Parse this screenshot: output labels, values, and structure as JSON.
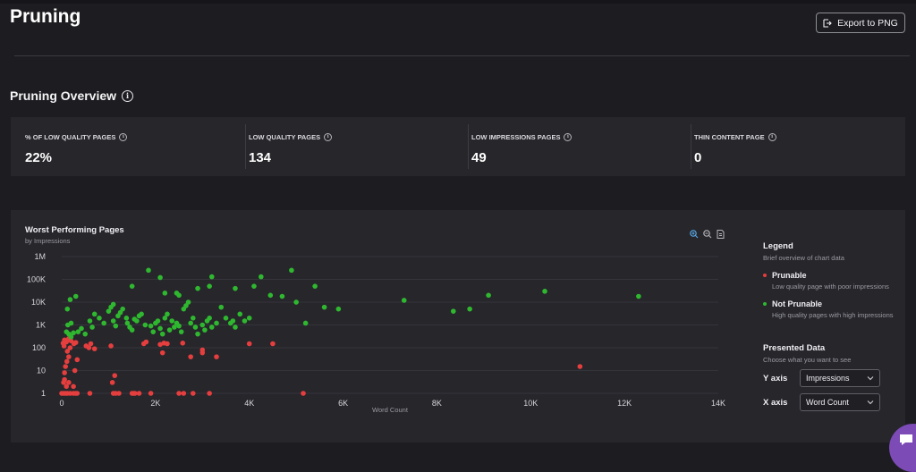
{
  "page": {
    "title": "Pruning",
    "export_label": "Export to PNG"
  },
  "overview": {
    "title": "Pruning Overview",
    "stats": [
      {
        "label": "% OF LOW QUALITY PAGES",
        "value": "22%"
      },
      {
        "label": "LOW QUALITY PAGES",
        "value": "134"
      },
      {
        "label": "LOW IMPRESSIONS PAGES",
        "value": "49"
      },
      {
        "label": "THIN CONTENT PAGE",
        "value": "0"
      }
    ]
  },
  "chart_panel": {
    "title": "Worst Performing Pages",
    "subtitle": "by Impressions",
    "toolbar_icons": [
      "zoom-in-icon",
      "zoom-out-icon",
      "download-icon"
    ]
  },
  "legend": {
    "title": "Legend",
    "subtitle": "Brief overview of chart data",
    "items": [
      {
        "name": "Prunable",
        "desc": "Low quality page with poor impressions",
        "color": "#e53e3e"
      },
      {
        "name": "Not Prunable",
        "desc": "High quality pages with high impressions",
        "color": "#2fb82f"
      }
    ]
  },
  "presented": {
    "title": "Presented Data",
    "subtitle": "Choose what you want to see",
    "y_label": "Y axis",
    "y_value": "Impressions",
    "x_label": "X axis",
    "x_value": "Word Count"
  },
  "colors": {
    "prunable": "#e53e3e",
    "not_prunable": "#2fb82f",
    "chat": "#7c4bb6"
  },
  "chart_data": {
    "type": "scatter",
    "xlabel": "Word Count",
    "ylabel": "",
    "xlim": [
      0,
      14000
    ],
    "ylim": [
      1,
      1000000
    ],
    "y_scale": "log",
    "x_ticks": [
      0,
      2000,
      4000,
      6000,
      8000,
      10000,
      12000,
      14000
    ],
    "x_tick_labels": [
      "0",
      "2K",
      "4K",
      "6K",
      "8K",
      "10K",
      "12K",
      "14K"
    ],
    "y_ticks": [
      1,
      10,
      100,
      1000,
      10000,
      100000,
      1000000
    ],
    "y_tick_labels": [
      "1",
      "10",
      "100",
      "1K",
      "10K",
      "100K",
      "1M"
    ],
    "grid": true,
    "series": [
      {
        "name": "Prunable",
        "points": [
          [
            0,
            1
          ],
          [
            40,
            1
          ],
          [
            80,
            1
          ],
          [
            120,
            1
          ],
          [
            180,
            1
          ],
          [
            250,
            1
          ],
          [
            300,
            1
          ],
          [
            330,
            1
          ],
          [
            600,
            1
          ],
          [
            1100,
            1
          ],
          [
            1150,
            1
          ],
          [
            1220,
            1
          ],
          [
            1500,
            1
          ],
          [
            1530,
            1
          ],
          [
            1560,
            1
          ],
          [
            1650,
            1
          ],
          [
            1900,
            1
          ],
          [
            2500,
            1
          ],
          [
            2600,
            1
          ],
          [
            2800,
            1
          ],
          [
            3150,
            1
          ],
          [
            5150,
            1
          ],
          [
            40,
            3
          ],
          [
            60,
            4
          ],
          [
            100,
            2
          ],
          [
            150,
            3
          ],
          [
            250,
            2
          ],
          [
            1080,
            3
          ],
          [
            1130,
            6
          ],
          [
            60,
            8
          ],
          [
            80,
            15
          ],
          [
            110,
            25
          ],
          [
            150,
            40
          ],
          [
            120,
            70
          ],
          [
            180,
            100
          ],
          [
            50,
            120
          ],
          [
            30,
            160
          ],
          [
            100,
            180
          ],
          [
            60,
            220
          ],
          [
            150,
            250
          ],
          [
            200,
            200
          ],
          [
            260,
            150
          ],
          [
            300,
            170
          ],
          [
            280,
            10
          ],
          [
            330,
            30
          ],
          [
            520,
            120
          ],
          [
            580,
            100
          ],
          [
            620,
            150
          ],
          [
            700,
            90
          ],
          [
            1050,
            120
          ],
          [
            1750,
            150
          ],
          [
            1800,
            180
          ],
          [
            2100,
            140
          ],
          [
            2180,
            160
          ],
          [
            2250,
            150
          ],
          [
            2580,
            160
          ],
          [
            2750,
            40
          ],
          [
            3000,
            80
          ],
          [
            3300,
            40
          ],
          [
            3000,
            60
          ],
          [
            2150,
            60
          ],
          [
            4000,
            150
          ],
          [
            4500,
            150
          ],
          [
            11050,
            15
          ]
        ]
      },
      {
        "name": "Not Prunable",
        "points": [
          [
            100,
            500
          ],
          [
            150,
            400
          ],
          [
            200,
            300
          ],
          [
            250,
            450
          ],
          [
            120,
            5000
          ],
          [
            180,
            13000
          ],
          [
            300,
            18000
          ],
          [
            200,
            1200
          ],
          [
            130,
            1000
          ],
          [
            350,
            500
          ],
          [
            420,
            700
          ],
          [
            500,
            400
          ],
          [
            600,
            1500
          ],
          [
            650,
            800
          ],
          [
            700,
            3000
          ],
          [
            800,
            2000
          ],
          [
            900,
            1200
          ],
          [
            1000,
            4000
          ],
          [
            1050,
            6000
          ],
          [
            1100,
            8000
          ],
          [
            1100,
            1500
          ],
          [
            1150,
            900
          ],
          [
            1200,
            2500
          ],
          [
            1250,
            3500
          ],
          [
            1300,
            5000
          ],
          [
            1380,
            2000
          ],
          [
            1400,
            1200
          ],
          [
            1450,
            800
          ],
          [
            1500,
            600
          ],
          [
            1550,
            1800
          ],
          [
            1600,
            1500
          ],
          [
            1650,
            2500
          ],
          [
            1700,
            3000
          ],
          [
            1780,
            1000
          ],
          [
            1900,
            900
          ],
          [
            1950,
            500
          ],
          [
            2000,
            1200
          ],
          [
            2050,
            1500
          ],
          [
            2100,
            700
          ],
          [
            2150,
            400
          ],
          [
            2200,
            2000
          ],
          [
            2250,
            3000
          ],
          [
            2300,
            600
          ],
          [
            2350,
            1500
          ],
          [
            2400,
            800
          ],
          [
            2450,
            1200
          ],
          [
            2500,
            900
          ],
          [
            2550,
            500
          ],
          [
            2600,
            5000
          ],
          [
            2650,
            7000
          ],
          [
            2700,
            10000
          ],
          [
            2750,
            1200
          ],
          [
            2800,
            2000
          ],
          [
            2850,
            800
          ],
          [
            2900,
            400
          ],
          [
            3000,
            1000
          ],
          [
            3050,
            600
          ],
          [
            3100,
            1500
          ],
          [
            3150,
            2000
          ],
          [
            3200,
            800
          ],
          [
            3300,
            1200
          ],
          [
            3400,
            6000
          ],
          [
            3500,
            2000
          ],
          [
            3600,
            1200
          ],
          [
            3650,
            1500
          ],
          [
            3700,
            800
          ],
          [
            3800,
            3000
          ],
          [
            3900,
            1500
          ],
          [
            4000,
            2000
          ],
          [
            1500,
            50000
          ],
          [
            1850,
            250000
          ],
          [
            2100,
            120000
          ],
          [
            2200,
            25000
          ],
          [
            2450,
            25000
          ],
          [
            2500,
            20000
          ],
          [
            2900,
            40000
          ],
          [
            3150,
            50000
          ],
          [
            3200,
            130000
          ],
          [
            3700,
            40000
          ],
          [
            4100,
            50000
          ],
          [
            4250,
            130000
          ],
          [
            4450,
            20000
          ],
          [
            4700,
            18000
          ],
          [
            4900,
            250000
          ],
          [
            5000,
            10000
          ],
          [
            5200,
            1200
          ],
          [
            5400,
            50000
          ],
          [
            5600,
            6000
          ],
          [
            5900,
            5000
          ],
          [
            7300,
            12000
          ],
          [
            8350,
            4000
          ],
          [
            8700,
            5000
          ],
          [
            9100,
            20000
          ],
          [
            10300,
            30000
          ],
          [
            12300,
            18000
          ]
        ]
      }
    ]
  }
}
